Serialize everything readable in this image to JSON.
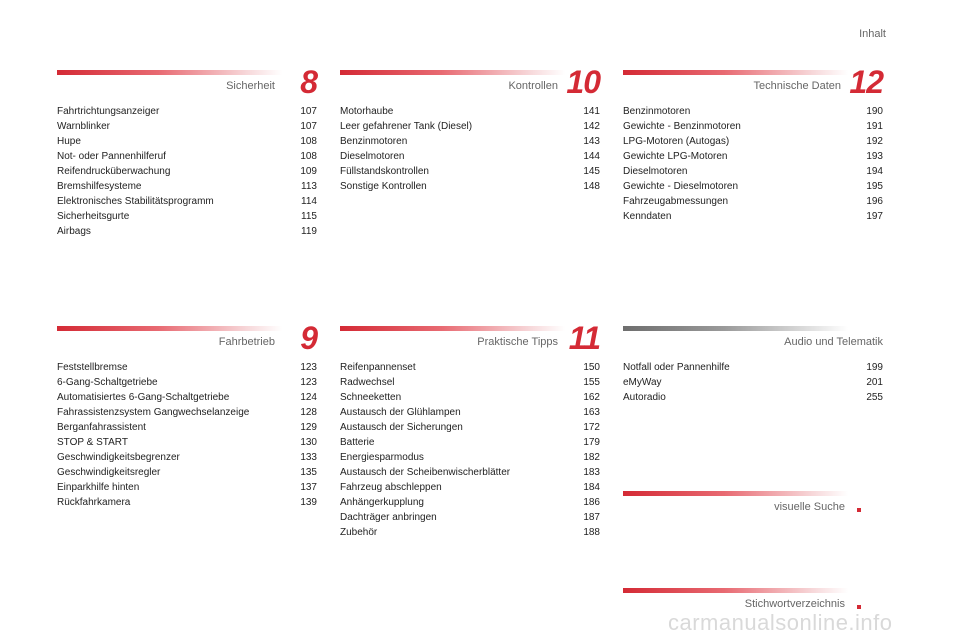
{
  "header": {
    "title": "Inhalt"
  },
  "sections": {
    "sicherheit": {
      "title": "Sicherheit",
      "number": "8",
      "entries": [
        {
          "label": "Fahrtrichtungsanzeiger",
          "page": "107"
        },
        {
          "label": "Warnblinker",
          "page": "107"
        },
        {
          "label": "Hupe",
          "page": "108"
        },
        {
          "label": "Not- oder Pannenhilferuf",
          "page": "108"
        },
        {
          "label": "Reifendrucküberwachung",
          "page": "109"
        },
        {
          "label": "Bremshilfesysteme",
          "page": "113"
        },
        {
          "label": "Elektronisches Stabilitätsprogramm",
          "page": "114"
        },
        {
          "label": "Sicherheitsgurte",
          "page": "115"
        },
        {
          "label": "Airbags",
          "page": "119"
        }
      ]
    },
    "kontrollen": {
      "title": "Kontrollen",
      "number": "10",
      "entries": [
        {
          "label": "Motorhaube",
          "page": "141"
        },
        {
          "label": "Leer gefahrener Tank (Diesel)",
          "page": "142"
        },
        {
          "label": "Benzinmotoren",
          "page": "143"
        },
        {
          "label": "Dieselmotoren",
          "page": "144"
        },
        {
          "label": "Füllstandskontrollen",
          "page": "145"
        },
        {
          "label": "Sonstige Kontrollen",
          "page": "148"
        }
      ]
    },
    "technische_daten": {
      "title": "Technische Daten",
      "number": "12",
      "entries": [
        {
          "label": "Benzinmotoren",
          "page": "190"
        },
        {
          "label": "Gewichte - Benzinmotoren",
          "page": "191"
        },
        {
          "label": "LPG-Motoren (Autogas)",
          "page": "192"
        },
        {
          "label": "Gewichte LPG-Motoren",
          "page": "193"
        },
        {
          "label": "Dieselmotoren",
          "page": "194"
        },
        {
          "label": "Gewichte - Dieselmotoren",
          "page": "195"
        },
        {
          "label": "Fahrzeugabmessungen",
          "page": "196"
        },
        {
          "label": "Kenndaten",
          "page": "197"
        }
      ]
    },
    "fahrbetrieb": {
      "title": "Fahrbetrieb",
      "number": "9",
      "entries": [
        {
          "label": "Feststellbremse",
          "page": "123"
        },
        {
          "label": "6-Gang-Schaltgetriebe",
          "page": "123"
        },
        {
          "label": "Automatisiertes 6-Gang-Schaltgetriebe",
          "page": "124"
        },
        {
          "label": "Fahrassistenzsystem Gangwechselanzeige",
          "page": "128"
        },
        {
          "label": "Berganfahrassistent",
          "page": "129"
        },
        {
          "label": "STOP & START",
          "page": "130"
        },
        {
          "label": "Geschwindigkeitsbegrenzer",
          "page": "133"
        },
        {
          "label": "Geschwindigkeitsregler",
          "page": "135"
        },
        {
          "label": "Einparkhilfe hinten",
          "page": "137"
        },
        {
          "label": "Rückfahrkamera",
          "page": "139"
        }
      ]
    },
    "praktische_tipps": {
      "title": "Praktische Tipps",
      "number": "11",
      "entries": [
        {
          "label": "Reifenpannenset",
          "page": "150"
        },
        {
          "label": "Radwechsel",
          "page": "155"
        },
        {
          "label": "Schneeketten",
          "page": "162"
        },
        {
          "label": "Austausch der Glühlampen",
          "page": "163"
        },
        {
          "label": "Austausch der Sicherungen",
          "page": "172"
        },
        {
          "label": "Batterie",
          "page": "179"
        },
        {
          "label": "Energiesparmodus",
          "page": "182"
        },
        {
          "label": "Austausch der Scheibenwischerblätter",
          "page": "183"
        },
        {
          "label": "Fahrzeug abschleppen",
          "page": "184"
        },
        {
          "label": "Anhängerkupplung",
          "page": "186"
        },
        {
          "label": "Dachträger anbringen",
          "page": "187"
        },
        {
          "label": "Zubehör",
          "page": "188"
        }
      ]
    },
    "audio": {
      "title": "Audio und Telematik",
      "entries": [
        {
          "label": "Notfall oder Pannenhilfe",
          "page": "199"
        },
        {
          "label": "eMyWay",
          "page": "201"
        },
        {
          "label": "Autoradio",
          "page": "255"
        }
      ]
    },
    "visuelle_suche": {
      "title": "visuelle Suche"
    },
    "stichwortverzeichnis": {
      "title": "Stichwortverzeichnis"
    }
  },
  "footer": {
    "watermark": "carmanualsonline.info"
  }
}
